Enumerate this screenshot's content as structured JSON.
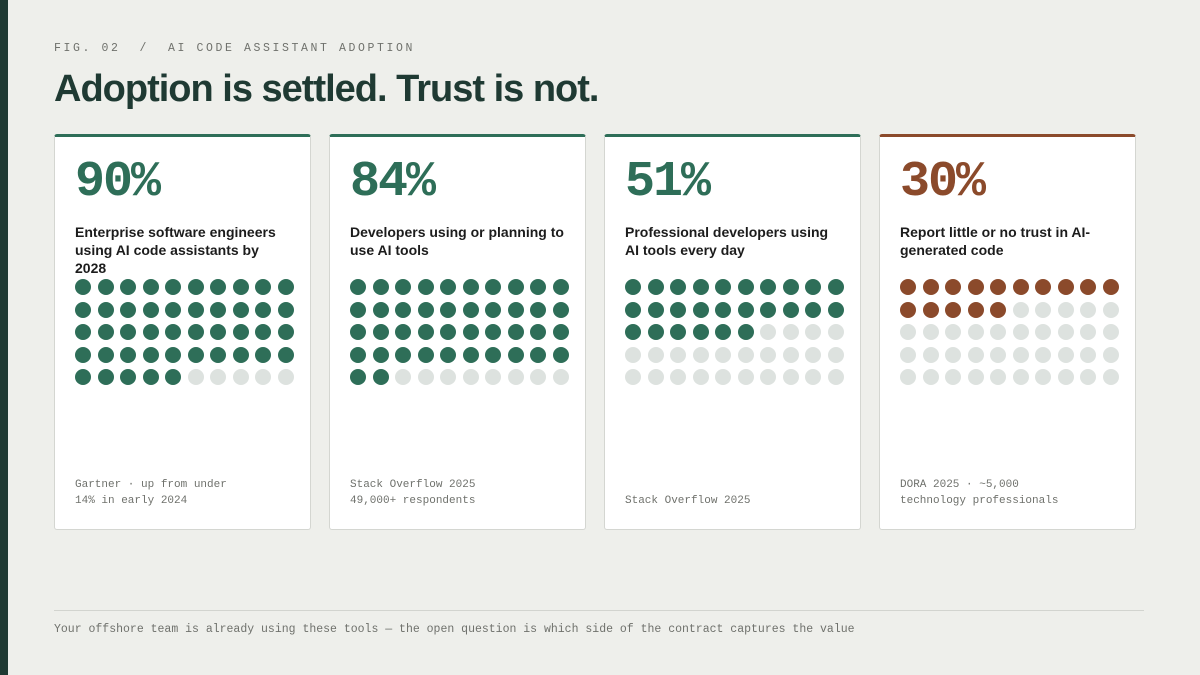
{
  "header": {
    "fig_label": "FIG. 02  /  AI CODE ASSISTANT ADOPTION",
    "title": "Adoption is settled. Trust is not."
  },
  "colors": {
    "accent_dark": "#1f3a33",
    "green": "#2e6e58",
    "rust": "#8b4a2b",
    "dot_empty": "#dde2df"
  },
  "chart_data": {
    "type": "waffle",
    "grid": {
      "rows": 5,
      "cols": 10
    },
    "stats": [
      {
        "value_label": "90%",
        "value": 90,
        "description": "Enterprise software engineers using AI code assistants by 2028",
        "source_lines": [
          "Gartner · up from under",
          "14% in early 2024"
        ],
        "color": "#2e6e58"
      },
      {
        "value_label": "84%",
        "value": 84,
        "description": "Developers using or planning to use AI tools",
        "source_lines": [
          "Stack Overflow 2025",
          "49,000+ respondents"
        ],
        "color": "#2e6e58"
      },
      {
        "value_label": "51%",
        "value": 51,
        "description": "Professional developers using AI tools every day",
        "source_lines": [
          "Stack Overflow 2025"
        ],
        "color": "#2e6e58"
      },
      {
        "value_label": "30%",
        "value": 30,
        "description": "Report little or no trust in AI-generated code",
        "source_lines": [
          "DORA 2025 · ~5,000",
          "technology professionals"
        ],
        "color": "#8b4a2b"
      }
    ]
  },
  "footer": {
    "text": "Your offshore team is already using these tools — the open question is which side of the contract captures the value"
  }
}
